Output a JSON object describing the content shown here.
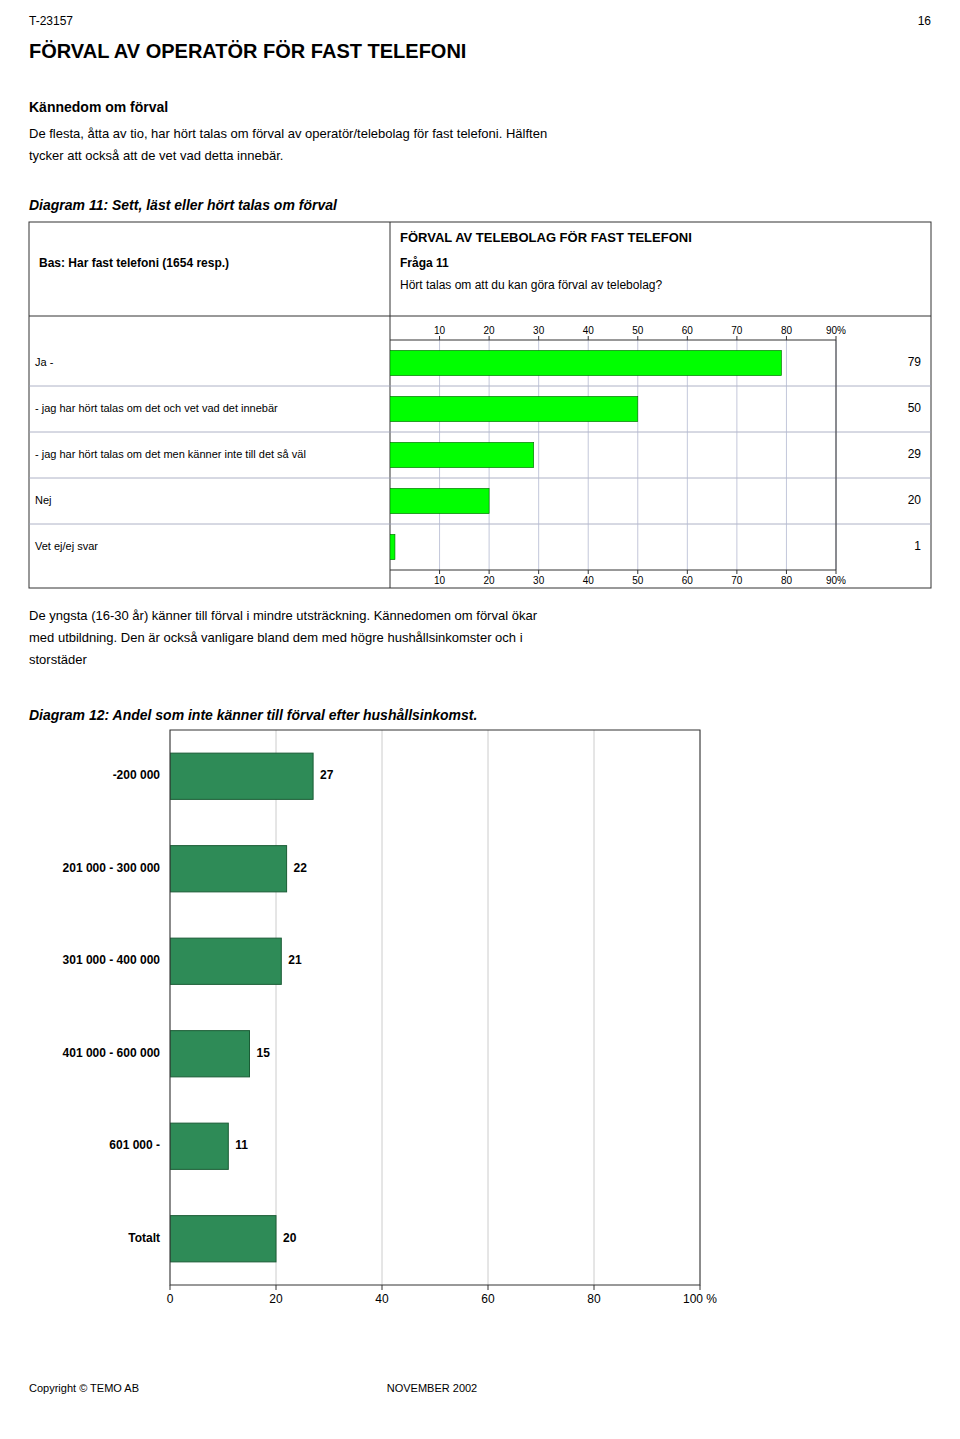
{
  "page": {
    "header_left": "T-23157",
    "header_right": "16",
    "section_title": "FÖRVAL AV OPERATÖR FÖR FAST TELEFONI",
    "subsection_title": "Kännedom om förval",
    "intro_text": "De flesta, åtta av tio, har hört talas om förval av operatör/telebolag för fast telefoni. Hälften\ntycker att också att de vet vad detta innebär.",
    "diagram11_label": "Diagram 11:  Sett, läst eller hört talas om förval",
    "inter_text": "De yngsta (16-30 år) känner till förval i mindre utsträckning. Kännedomen om förval ökar\nmed utbildning. Den är också vanligare bland dem med högre hushållsinkomster och i\nstorstäder",
    "diagram12_label": "Diagram 12:   Andel som inte känner till förval efter hushållsinkomst.",
    "footer_left": "Copyright © TEMO AB",
    "footer_center": "NOVEMBER 2002"
  },
  "chart_data": [
    {
      "type": "bar",
      "orientation": "horizontal",
      "title": "FÖRVAL AV TELEBOLAG FÖR FAST TELEFONI",
      "subtitle": "Hört talas om att du kan göra förval av telebolag?",
      "annotations": [
        "Fråga 11",
        "Bas: Har fast telefoni (1654 resp.)"
      ],
      "categories": [
        "Ja -",
        "- jag har hört talas om det och vet vad det innebär",
        "- jag har hört talas om det men känner inte till det så väl",
        "Nej",
        "Vet ej/ej svar"
      ],
      "values": [
        79,
        50,
        29,
        20,
        1
      ],
      "color": "#00FF00",
      "xlim": [
        0,
        90
      ],
      "xticks": [
        10,
        20,
        30,
        40,
        50,
        60,
        70,
        80,
        {
          "value": 90,
          "label": "90%"
        }
      ],
      "grid": true,
      "data_labels": true
    },
    {
      "type": "bar",
      "orientation": "horizontal",
      "categories": [
        "-200 000",
        "201 000 - 300 000",
        "301 000 - 400 000",
        "401 000 - 600 000",
        "601 000 -",
        "Totalt"
      ],
      "values": [
        27,
        22,
        21,
        15,
        11,
        20
      ],
      "color": "#2E8B57",
      "xlim": [
        0,
        100
      ],
      "xticks": [
        0,
        20,
        40,
        60,
        80,
        {
          "value": 100,
          "label": "100 %"
        }
      ],
      "grid": true,
      "data_labels": true
    }
  ]
}
